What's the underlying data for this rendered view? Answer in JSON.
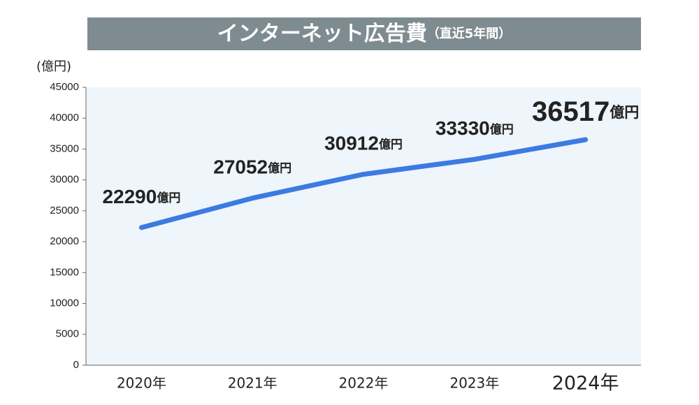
{
  "chart_data": {
    "type": "line",
    "title": "インターネット広告費",
    "subtitle": "（直近5年間）",
    "y_label": "(億円)",
    "categories": [
      "2020年",
      "2021年",
      "2022年",
      "2023年",
      "2024年"
    ],
    "values": [
      22290,
      27052,
      30912,
      33330,
      36517
    ],
    "value_labels": [
      "22290億円",
      "27052億円",
      "30912億円",
      "33330億円",
      "36517億円"
    ],
    "color": "#3b7be2",
    "highlight_color": "#d0103a",
    "ylim": [
      0,
      45000
    ],
    "yticks": [
      0,
      5000,
      10000,
      15000,
      20000,
      25000,
      30000,
      35000,
      40000,
      45000
    ],
    "grid": false
  }
}
